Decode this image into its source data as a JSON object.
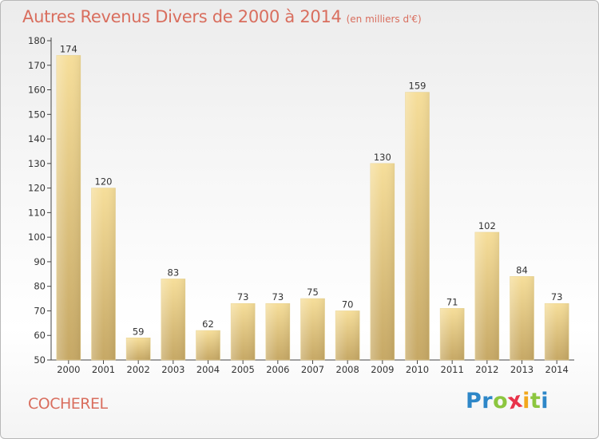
{
  "title": "Autres Revenus Divers de 2000 à 2014",
  "subtitle": "(en milliers d'€)",
  "place": "COCHEREL",
  "brand": {
    "letters": [
      "P",
      "r",
      "o",
      "x",
      "i",
      "t",
      "i"
    ],
    "colors": [
      "#2e87c8",
      "#2e87c8",
      "#8cc63f",
      "#e8334a",
      "#f2a71b",
      "#8cc63f",
      "#2e87c8"
    ]
  },
  "colors": {
    "bar_top": "#f6de9a",
    "bar_bottom": "#c6a865",
    "accent": "#d96e5e"
  },
  "chart_data": {
    "type": "bar",
    "categories": [
      "2000",
      "2001",
      "2002",
      "2003",
      "2004",
      "2005",
      "2006",
      "2007",
      "2008",
      "2009",
      "2010",
      "2011",
      "2012",
      "2013",
      "2014"
    ],
    "values": [
      174,
      120,
      59,
      83,
      62,
      73,
      73,
      75,
      70,
      130,
      159,
      71,
      102,
      84,
      73
    ],
    "ylim": [
      50,
      180
    ],
    "yticks": [
      50,
      60,
      70,
      80,
      90,
      100,
      110,
      120,
      130,
      140,
      150,
      160,
      170,
      180
    ],
    "grid": false
  }
}
